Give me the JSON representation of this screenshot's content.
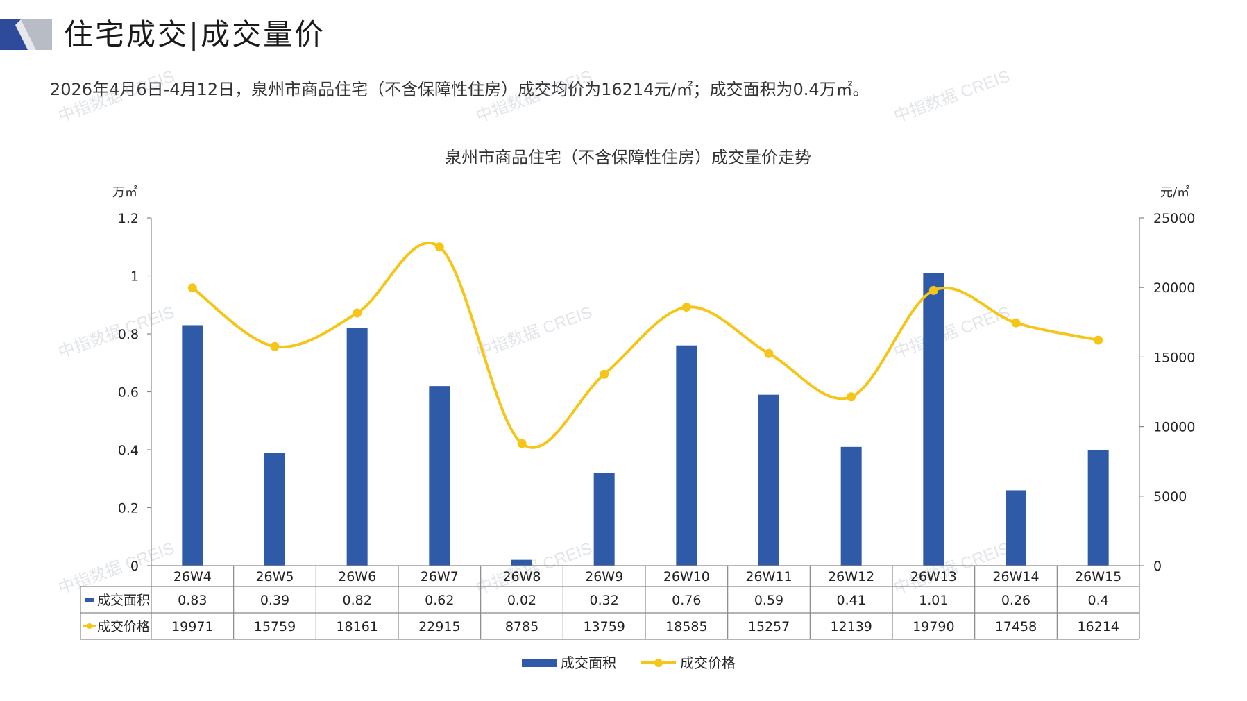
{
  "header": {
    "title": "住宅成交|成交量价",
    "summary": "2026年4月6日-4月12日，泉州市商品住宅（不含保障性住房）成交均价为16214元/㎡；成交面积为0.4万㎡。"
  },
  "watermark": {
    "text": "中指数据 CREIS"
  },
  "colors": {
    "bar": "#2E5AA8",
    "line": "#F5C518",
    "logo_blue": "#2E4A9A",
    "logo_gray": "#B8BCC4"
  },
  "chart_data": {
    "type": "bar+line",
    "title": "泉州市商品住宅（不含保障性住房）成交量价走势",
    "categories": [
      "26W4",
      "26W5",
      "26W6",
      "26W7",
      "26W8",
      "26W9",
      "26W10",
      "26W11",
      "26W12",
      "26W13",
      "26W14",
      "26W15"
    ],
    "series": [
      {
        "name": "成交面积",
        "type": "bar",
        "axis": "left",
        "values": [
          0.83,
          0.39,
          0.82,
          0.62,
          0.02,
          0.32,
          0.76,
          0.59,
          0.41,
          1.01,
          0.26,
          0.4
        ],
        "labels": [
          "0.83",
          "0.39",
          "0.82",
          "0.62",
          "0.02",
          "0.32",
          "0.76",
          "0.59",
          "0.41",
          "1.01",
          "0.26",
          "0.4"
        ]
      },
      {
        "name": "成交价格",
        "type": "line",
        "axis": "right",
        "smooth": true,
        "values": [
          19971,
          15759,
          18161,
          22915,
          8785,
          13759,
          18585,
          15257,
          12139,
          19790,
          17458,
          16214
        ],
        "labels": [
          "19971",
          "15759",
          "18161",
          "22915",
          "8785",
          "13759",
          "18585",
          "15257",
          "12139",
          "19790",
          "17458",
          "16214"
        ]
      }
    ],
    "left_axis": {
      "unit": "万㎡",
      "ylim": [
        0,
        1.2
      ],
      "ticks": [
        0,
        0.2,
        0.4,
        0.6,
        0.8,
        1,
        1.2
      ],
      "tick_labels": [
        "0",
        "0.2",
        "0.4",
        "0.6",
        "0.8",
        "1",
        "1.2"
      ]
    },
    "right_axis": {
      "unit": "元/㎡",
      "ylim": [
        0,
        25000
      ],
      "ticks": [
        0,
        5000,
        10000,
        15000,
        20000,
        25000
      ],
      "tick_labels": [
        "0",
        "5000",
        "10000",
        "15000",
        "20000",
        "25000"
      ]
    },
    "grid": false,
    "legend": "bottom-center",
    "data_table": true
  }
}
